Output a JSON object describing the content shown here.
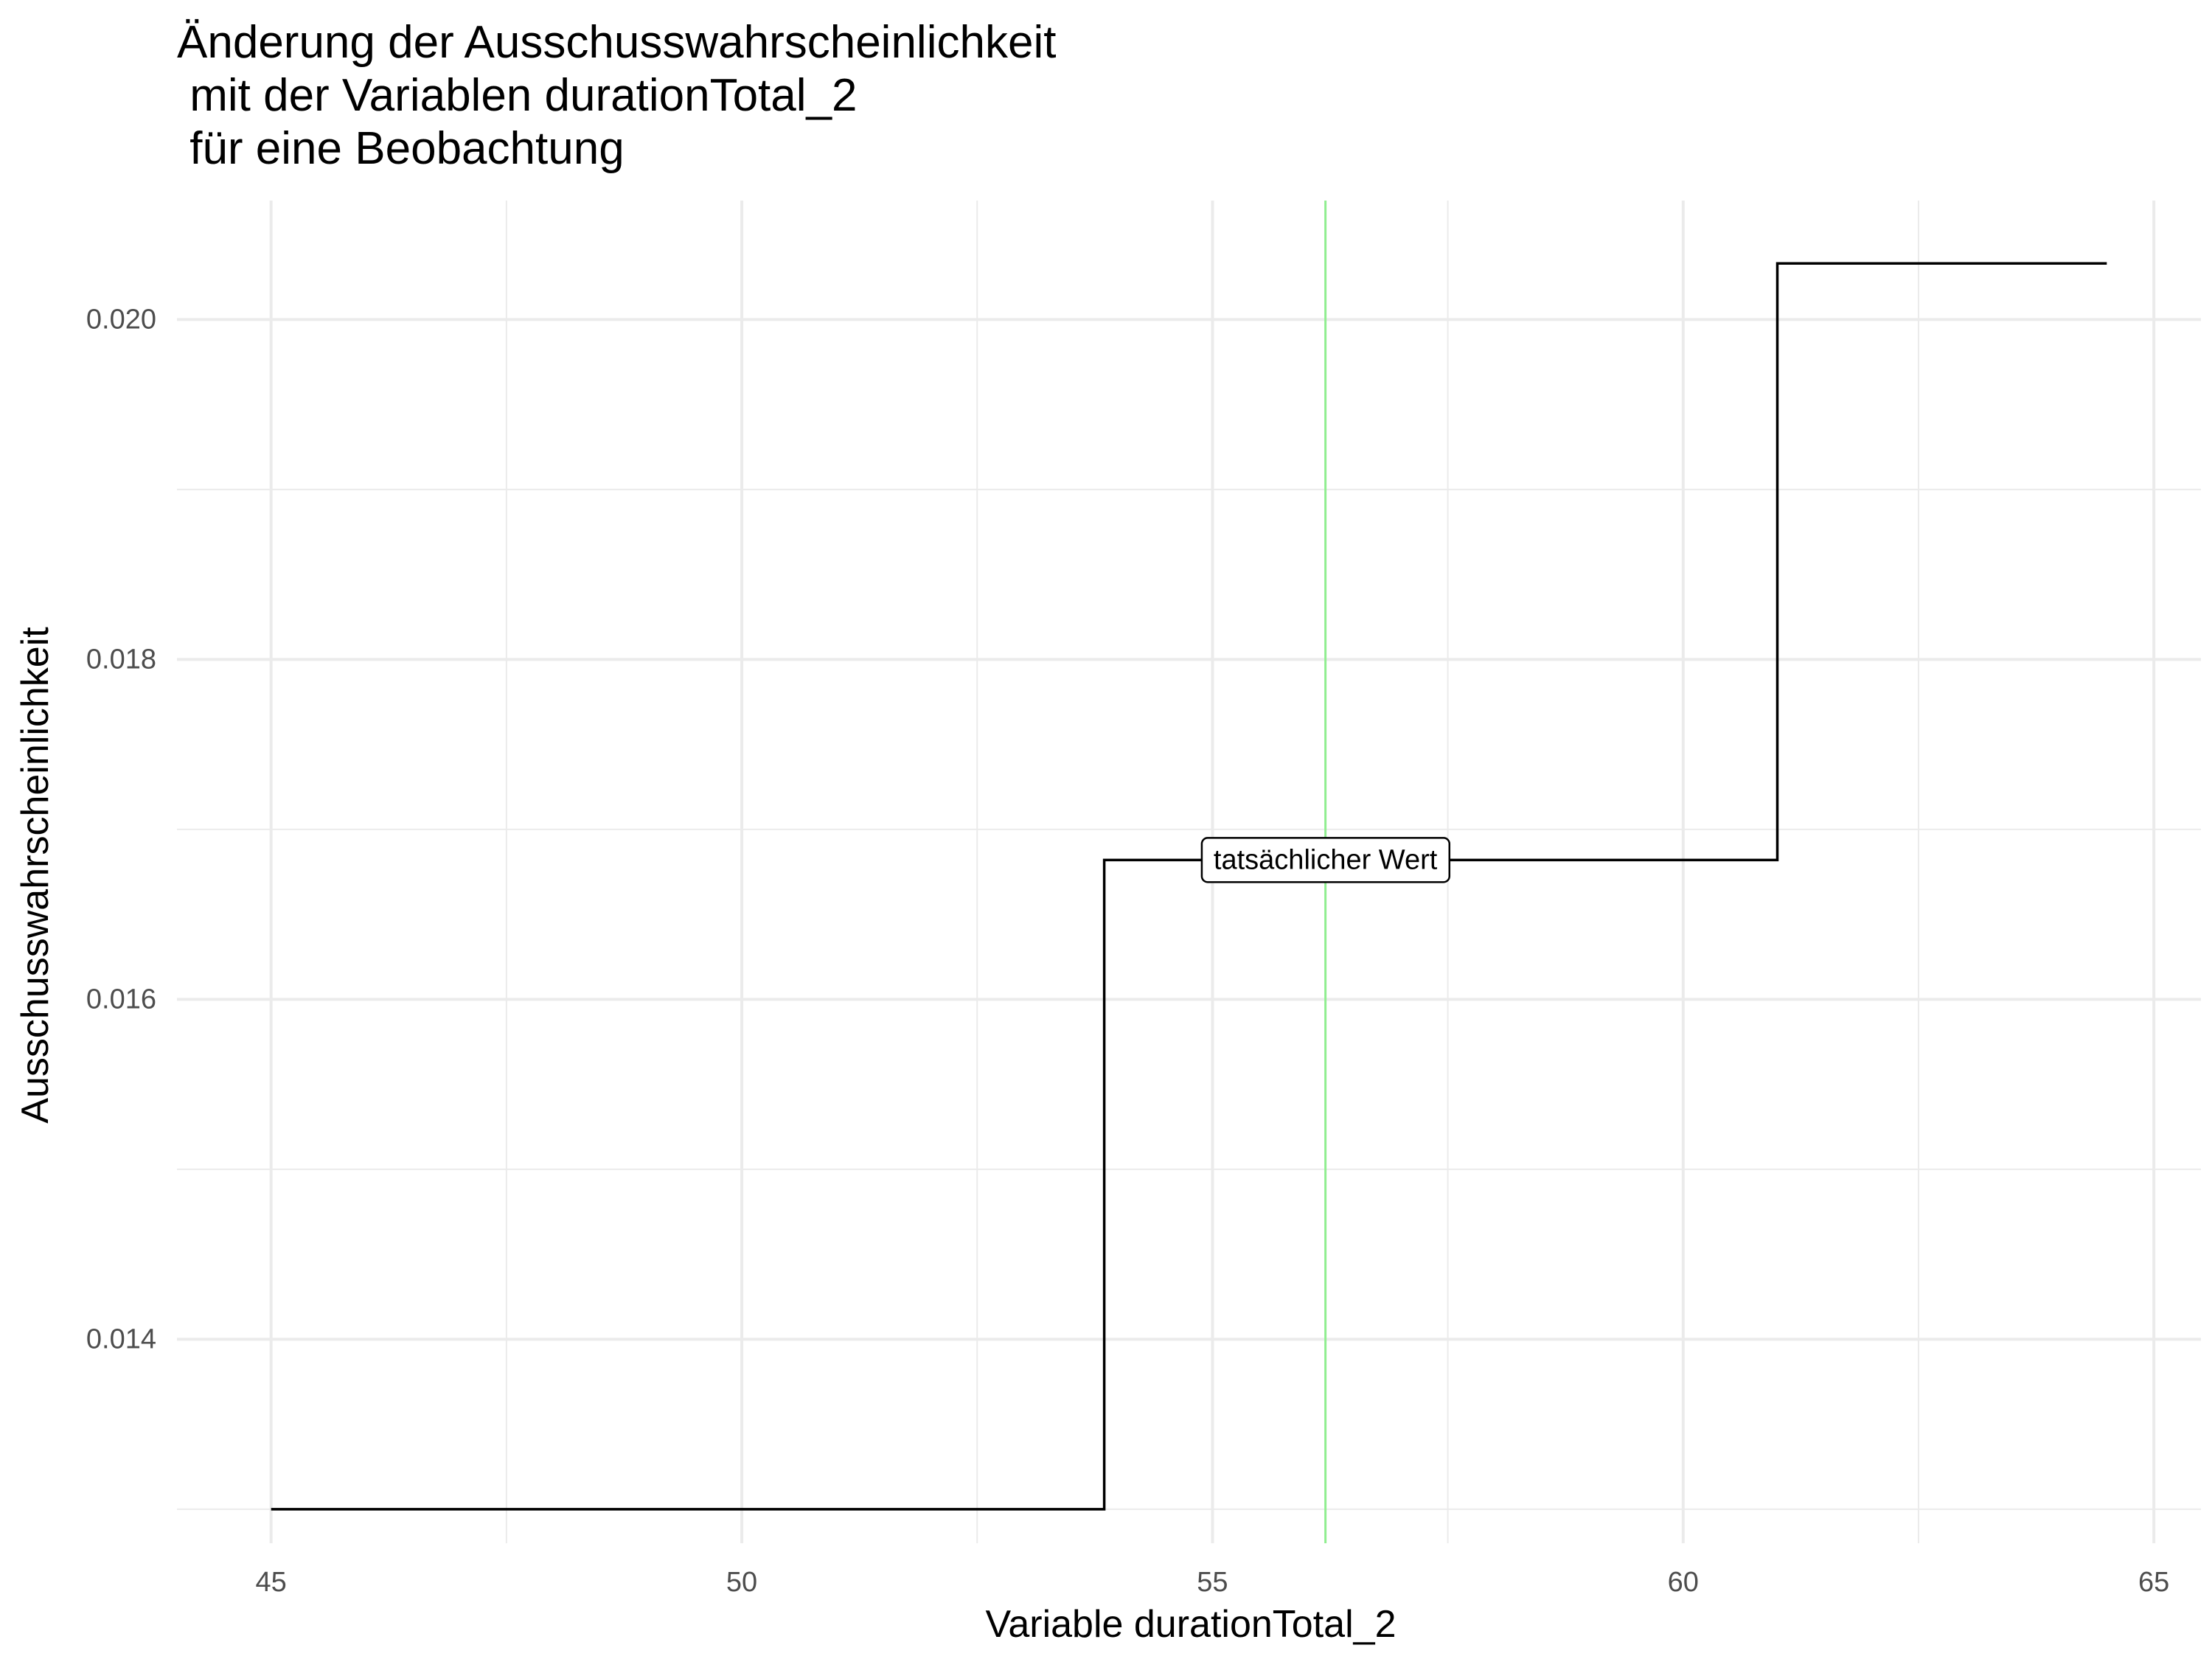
{
  "chart_data": {
    "type": "line",
    "line_shape": "step",
    "title_lines": [
      "Änderung der Ausschusswahrscheinlichkeit",
      " mit der Variablen durationTotal_2",
      " für eine Beobachtung"
    ],
    "xlabel": "Variable durationTotal_2",
    "ylabel": "Ausschusswahrscheinlichkeit",
    "xlim": [
      44,
      65.5
    ],
    "ylim": [
      0.0128,
      0.0207
    ],
    "x_ticks": [
      45,
      50,
      55,
      60,
      65
    ],
    "x_tick_labels": [
      "45",
      "50",
      "55",
      "60",
      "65"
    ],
    "y_ticks": [
      0.014,
      0.016,
      0.018,
      0.02
    ],
    "y_tick_labels": [
      "0.014",
      "0.016",
      "0.018",
      "0.020"
    ],
    "grid": true,
    "series": [
      {
        "color": "#000000",
        "x": [
          45,
          53.85,
          53.85,
          61.0,
          61.0,
          64.5
        ],
        "y": [
          0.013,
          0.013,
          0.01682,
          0.01682,
          0.02033,
          0.02033
        ]
      }
    ],
    "vline": {
      "x": 56.2,
      "color": "#90ee90"
    },
    "annotation": {
      "text": "tatsächlicher Wert",
      "x": 56.2,
      "y": 0.01682
    }
  }
}
